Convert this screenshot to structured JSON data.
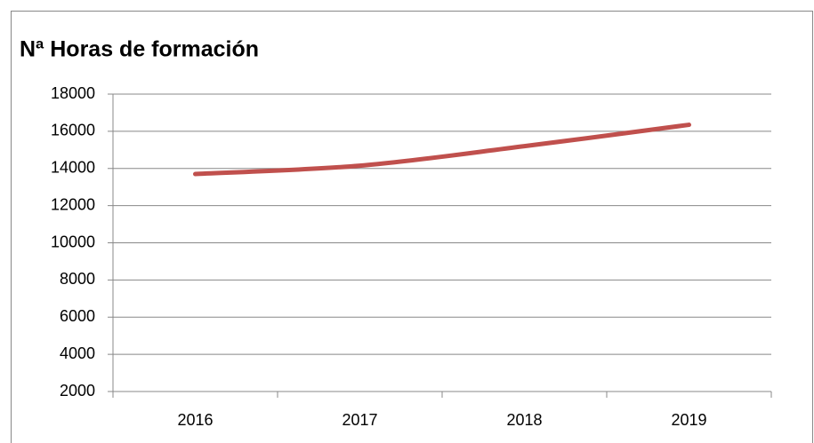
{
  "chart_data": {
    "type": "line",
    "title": "Nª Horas de formación",
    "categories": [
      "2016",
      "2017",
      "2018",
      "2019"
    ],
    "series": [
      {
        "name": "Nª Horas de formación",
        "color": "#c0504d",
        "values": [
          13700,
          14150,
          15200,
          16350
        ]
      }
    ],
    "ylim": [
      2000,
      18000
    ],
    "yticks": [
      2000,
      4000,
      6000,
      8000,
      10000,
      12000,
      14000,
      16000,
      18000
    ],
    "grid": true
  }
}
